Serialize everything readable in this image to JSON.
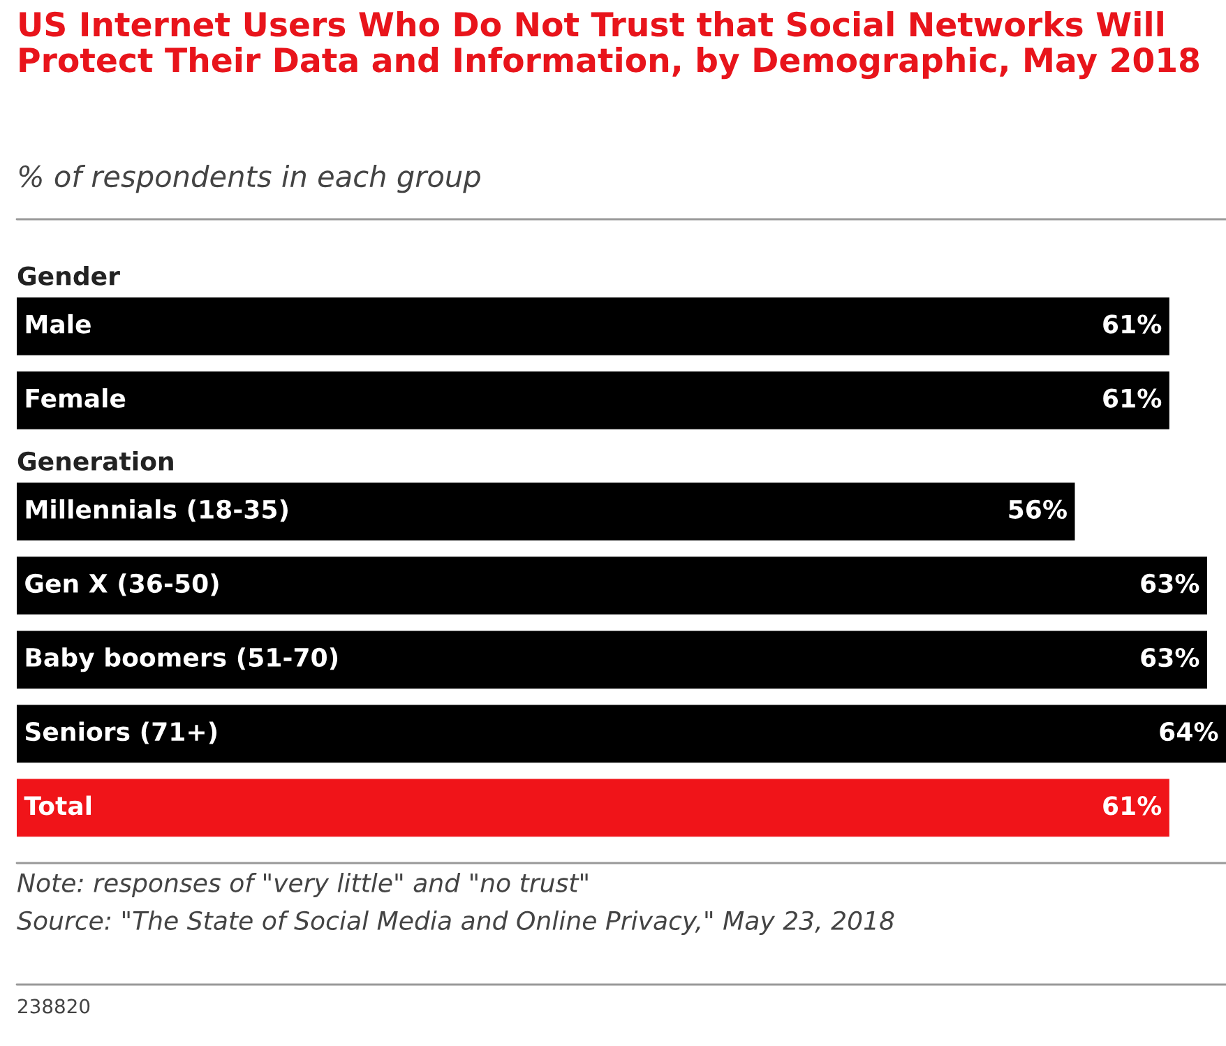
{
  "chart_data": {
    "type": "bar",
    "orientation": "horizontal",
    "title": "US Internet Users Who Do Not Trust that Social Networks Will Protect Their Data and Information, by Demographic, May 2018",
    "subtitle": "% of respondents in each group",
    "categories": [
      "Gender",
      "Male",
      "Female",
      "Generation",
      "Millennials (18-35)",
      "Gen X (36-50)",
      "Baby boomers (51-70)",
      "Seniors (71+)",
      "Total"
    ],
    "values": [
      null,
      61,
      61,
      null,
      56,
      63,
      63,
      64,
      61
    ],
    "value_labels": [
      null,
      "61%",
      "61%",
      null,
      "56%",
      "63%",
      "63%",
      "64%",
      "61%"
    ],
    "colors": [
      "#000000",
      "#000000",
      "#000000",
      "#000000",
      "#000000",
      "#000000",
      "#000000",
      "#000000",
      "#f01419"
    ],
    "annotations": [
      "Note: responses of \"very little\" and \"no trust\"",
      "Source: \"The State of Social Media and Online Privacy,\" May 23, 2018",
      "238820"
    ]
  }
}
